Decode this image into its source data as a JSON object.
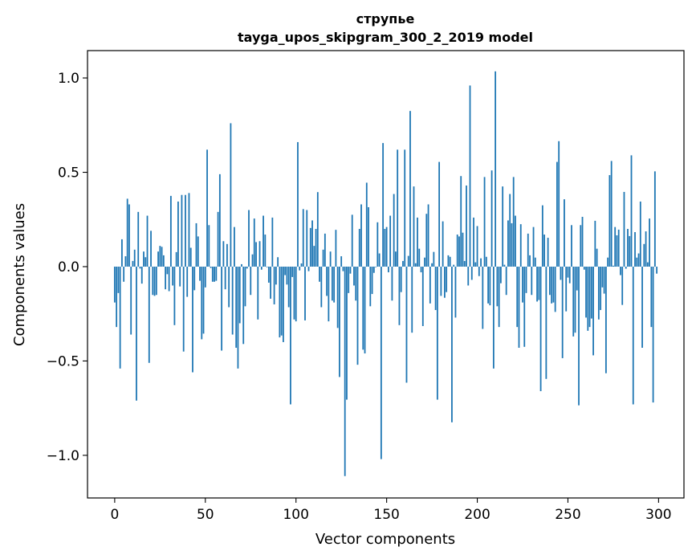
{
  "chart_data": {
    "type": "bar",
    "title": "струпье",
    "subtitle": "tayga_upos_skipgram_300_2_2019 model",
    "xlabel": "Vector components",
    "ylabel": "Components values",
    "xlim": [
      -15,
      314
    ],
    "ylim": [
      -1.226,
      1.145
    ],
    "xticks": [
      0,
      50,
      100,
      150,
      200,
      250,
      300
    ],
    "xtick_labels": [
      "0",
      "50",
      "100",
      "150",
      "200",
      "250",
      "300"
    ],
    "yticks": [
      -1.0,
      -0.5,
      0.0,
      0.5,
      1.0
    ],
    "ytick_labels": [
      "−1.0",
      "−0.5",
      "0.0",
      "0.5",
      "1.0"
    ],
    "grid": false,
    "color": "#1f77b4",
    "values": [
      -0.19,
      -0.32,
      -0.14,
      -0.54,
      0.145,
      -0.08,
      0.055,
      0.36,
      0.33,
      -0.36,
      0.03,
      0.09,
      -0.71,
      0.29,
      -0.01,
      -0.09,
      0.08,
      0.05,
      0.27,
      -0.51,
      0.19,
      -0.15,
      -0.155,
      -0.15,
      0.08,
      0.11,
      0.105,
      0.06,
      -0.12,
      -0.04,
      -0.13,
      0.375,
      -0.1,
      -0.31,
      0.077,
      0.345,
      -0.105,
      0.38,
      -0.45,
      0.38,
      -0.16,
      0.39,
      0.1,
      -0.56,
      -0.125,
      0.23,
      0.16,
      -0.075,
      -0.385,
      -0.355,
      -0.11,
      0.62,
      0.22,
      -0.007,
      -0.08,
      -0.08,
      -0.075,
      0.29,
      0.49,
      -0.445,
      0.135,
      -0.12,
      0.12,
      -0.215,
      0.76,
      -0.36,
      0.21,
      -0.43,
      -0.54,
      -0.3,
      0.013,
      -0.41,
      -0.21,
      -0.01,
      0.3,
      -0.15,
      0.065,
      0.255,
      0.13,
      -0.28,
      0.135,
      -0.016,
      0.27,
      0.17,
      -0.003,
      -0.085,
      -0.17,
      0.26,
      -0.2,
      -0.095,
      0.05,
      -0.375,
      -0.365,
      -0.4,
      -0.045,
      -0.095,
      -0.215,
      -0.73,
      -0.055,
      -0.28,
      -0.29,
      0.66,
      -0.02,
      0.017,
      0.305,
      -0.285,
      0.3,
      -0.024,
      0.205,
      0.245,
      0.11,
      0.2,
      0.395,
      -0.08,
      -0.215,
      0.09,
      0.175,
      -0.155,
      -0.29,
      0.08,
      -0.18,
      -0.19,
      0.195,
      -0.325,
      -0.585,
      0.055,
      -0.024,
      -1.11,
      -0.705,
      -0.14,
      -0.037,
      0.275,
      -0.1,
      -0.18,
      -0.52,
      0.2,
      0.33,
      -0.44,
      -0.46,
      0.445,
      0.315,
      -0.21,
      -0.145,
      -0.033,
      -0.003,
      0.235,
      0.07,
      -1.02,
      0.655,
      0.2,
      0.21,
      -0.03,
      0.27,
      -0.18,
      0.385,
      0.08,
      0.62,
      -0.31,
      -0.135,
      0.03,
      0.62,
      -0.615,
      0.057,
      0.825,
      -0.35,
      0.425,
      0.018,
      0.26,
      0.095,
      -0.03,
      -0.315,
      0.048,
      0.28,
      0.33,
      -0.195,
      0.018,
      0.078,
      -0.23,
      -0.705,
      0.555,
      -0.155,
      0.24,
      -0.165,
      -0.135,
      0.06,
      0.052,
      -0.825,
      0.01,
      -0.27,
      0.17,
      0.16,
      0.48,
      0.18,
      0.03,
      0.43,
      -0.1,
      0.96,
      -0.07,
      0.26,
      0.023,
      0.215,
      -0.05,
      0.044,
      -0.33,
      0.475,
      0.052,
      -0.195,
      -0.205,
      0.51,
      -0.54,
      1.035,
      -0.21,
      -0.32,
      -0.088,
      0.425,
      0.01,
      -0.15,
      0.245,
      0.385,
      0.23,
      0.475,
      0.27,
      -0.32,
      -0.43,
      0.225,
      -0.19,
      -0.425,
      -0.14,
      0.175,
      0.06,
      -0.15,
      0.21,
      0.048,
      -0.185,
      -0.177,
      -0.66,
      0.325,
      0.17,
      -0.595,
      0.153,
      -0.15,
      -0.195,
      -0.19,
      -0.24,
      0.555,
      0.665,
      -0.07,
      -0.485,
      0.357,
      -0.237,
      -0.058,
      -0.088,
      0.22,
      -0.37,
      -0.35,
      -0.126,
      -0.735,
      0.22,
      0.264,
      -0.016,
      -0.27,
      -0.34,
      -0.32,
      -0.275,
      -0.47,
      0.243,
      0.095,
      -0.28,
      -0.23,
      -0.11,
      -0.143,
      -0.565,
      0.048,
      0.485,
      0.56,
      0.005,
      0.21,
      0.166,
      0.196,
      -0.045,
      -0.203,
      0.396,
      -0.011,
      0.2,
      0.162,
      0.59,
      -0.73,
      0.183,
      0.048,
      0.07,
      0.345,
      -0.43,
      0.12,
      0.187,
      0.023,
      0.255,
      -0.32,
      -0.72,
      0.505,
      -0.037
    ]
  }
}
